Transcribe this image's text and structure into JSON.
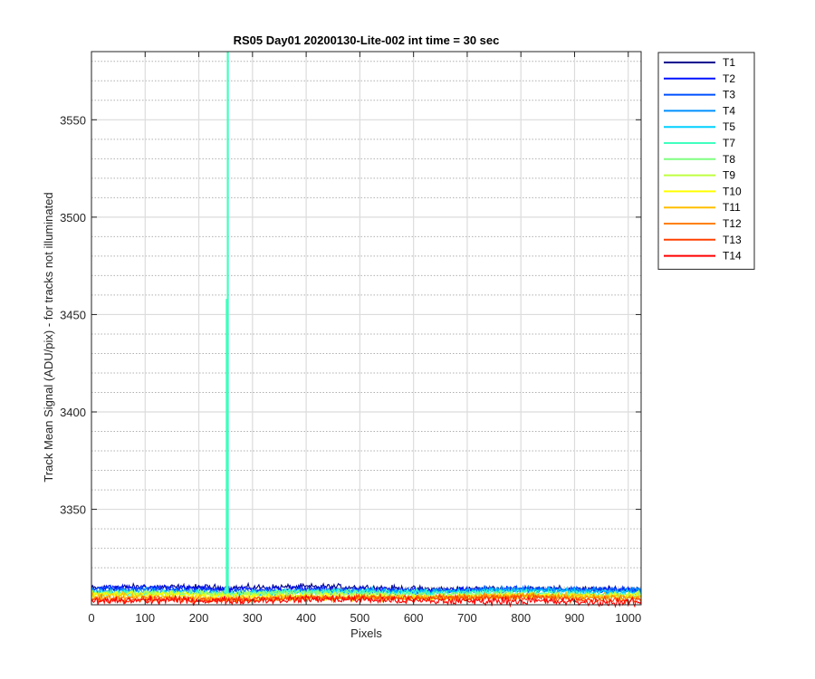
{
  "chart_data": {
    "type": "line",
    "title": "RS05 Day01 20200130-Lite-002 int time = 30 sec",
    "xlabel": "Pixels",
    "ylabel": "Track Mean Signal (ADU/pix) - for tracks not illuminated",
    "xlim": [
      0,
      1024
    ],
    "ylim": [
      3301,
      3585
    ],
    "x_ticks": [
      0,
      100,
      200,
      300,
      400,
      500,
      600,
      700,
      800,
      900,
      1000
    ],
    "y_ticks": [
      3350,
      3400,
      3450,
      3500,
      3550
    ],
    "grid": true,
    "minor_grid_y": true,
    "legend_position": "outside-top-right",
    "series": [
      {
        "name": "T1",
        "color": "#00008f",
        "baseline": 3309.5,
        "noise": 1.2
      },
      {
        "name": "T2",
        "color": "#0010ff",
        "baseline": 3309.0,
        "noise": 1.2
      },
      {
        "name": "T3",
        "color": "#0050ff",
        "baseline": 3308.5,
        "noise": 1.2
      },
      {
        "name": "T4",
        "color": "#0090ff",
        "baseline": 3308.0,
        "noise": 1.2
      },
      {
        "name": "T5",
        "color": "#00d0ff",
        "baseline": 3307.5,
        "noise": 1.2
      },
      {
        "name": "T7",
        "color": "#40ffbf",
        "baseline": 3307.0,
        "noise": 1.2,
        "spikes": [
          {
            "x": 254,
            "y": 3585
          },
          {
            "x": 252,
            "y": 3458
          },
          {
            "x": 250,
            "y": 3310
          }
        ]
      },
      {
        "name": "T8",
        "color": "#80ff80",
        "baseline": 3306.5,
        "noise": 1.2
      },
      {
        "name": "T9",
        "color": "#bfff40",
        "baseline": 3306.0,
        "noise": 1.2
      },
      {
        "name": "T10",
        "color": "#ffff00",
        "baseline": 3305.5,
        "noise": 1.2
      },
      {
        "name": "T11",
        "color": "#ffbf00",
        "baseline": 3305.0,
        "noise": 1.2
      },
      {
        "name": "T12",
        "color": "#ff8000",
        "baseline": 3304.5,
        "noise": 1.2
      },
      {
        "name": "T13",
        "color": "#ff4000",
        "baseline": 3304.0,
        "noise": 1.2
      },
      {
        "name": "T14",
        "color": "#ff0000",
        "baseline": 3303.0,
        "noise": 1.5
      }
    ]
  }
}
